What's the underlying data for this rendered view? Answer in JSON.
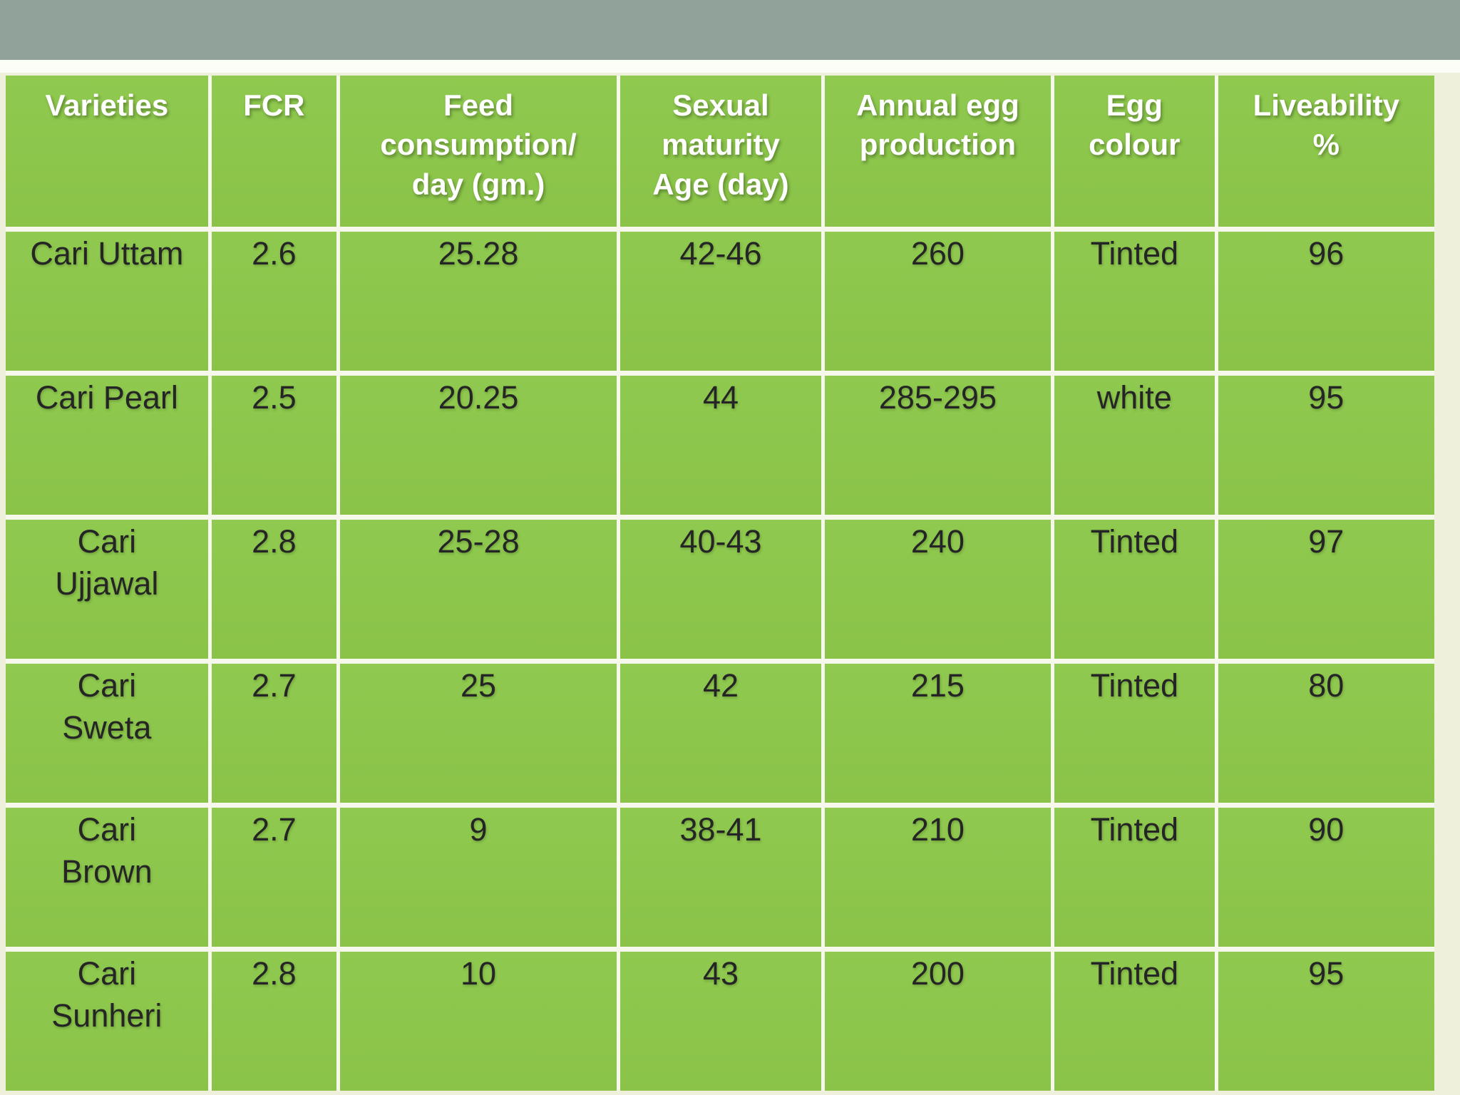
{
  "slide": {
    "top_bar_color": "#91a29b",
    "strip_color": "#fdfdf7",
    "background_color": "#eff0dc",
    "cell_color": "#8cc64b",
    "header_text_color": "#ffffff",
    "body_text_color": "#252525"
  },
  "table": {
    "header": {
      "varieties": "Varieties",
      "fcr": "FCR",
      "feed": "Feed\nconsumption/\nday (gm.)",
      "maturity": "Sexual\nmaturity\nAge (day)",
      "egg_production": "Annual egg\nproduction",
      "egg_colour": "Egg\ncolour",
      "liveability": "Liveability\n%"
    },
    "rows": [
      {
        "variety": "Cari Uttam",
        "fcr": "2.6",
        "feed": "25.28",
        "maturity": "42-46",
        "egg_production": "260",
        "egg_colour": "Tinted",
        "liveability": "96"
      },
      {
        "variety": "Cari Pearl",
        "fcr": "2.5",
        "feed": "20.25",
        "maturity": "44",
        "egg_production": "285-295",
        "egg_colour": "white",
        "liveability": "95"
      },
      {
        "variety": "Cari\nUjjawal",
        "fcr": "2.8",
        "feed": "25-28",
        "maturity": "40-43",
        "egg_production": "240",
        "egg_colour": "Tinted",
        "liveability": "97"
      },
      {
        "variety": "Cari\nSweta",
        "fcr": "2.7",
        "feed": "25",
        "maturity": "42",
        "egg_production": "215",
        "egg_colour": "Tinted",
        "liveability": "80"
      },
      {
        "variety": "Cari\nBrown",
        "fcr": "2.7",
        "feed": "9",
        "maturity": "38-41",
        "egg_production": "210",
        "egg_colour": "Tinted",
        "liveability": "90"
      },
      {
        "variety": "Cari\nSunheri",
        "fcr": "2.8",
        "feed": "10",
        "maturity": "43",
        "egg_production": "200",
        "egg_colour": "Tinted",
        "liveability": "95"
      }
    ]
  },
  "chart_data": {
    "type": "table",
    "columns": [
      "Varieties",
      "FCR",
      "Feed consumption/day (gm.)",
      "Sexual maturity Age (day)",
      "Annual egg production",
      "Egg colour",
      "Liveability %"
    ],
    "rows": [
      [
        "Cari Uttam",
        "2.6",
        "25.28",
        "42-46",
        "260",
        "Tinted",
        "96"
      ],
      [
        "Cari Pearl",
        "2.5",
        "20.25",
        "44",
        "285-295",
        "white",
        "95"
      ],
      [
        "Cari Ujjawal",
        "2.8",
        "25-28",
        "40-43",
        "240",
        "Tinted",
        "97"
      ],
      [
        "Cari Sweta",
        "2.7",
        "25",
        "42",
        "215",
        "Tinted",
        "80"
      ],
      [
        "Cari Brown",
        "2.7",
        "9",
        "38-41",
        "210",
        "Tinted",
        "90"
      ],
      [
        "Cari Sunheri",
        "2.8",
        "10",
        "43",
        "200",
        "Tinted",
        "95"
      ]
    ]
  }
}
